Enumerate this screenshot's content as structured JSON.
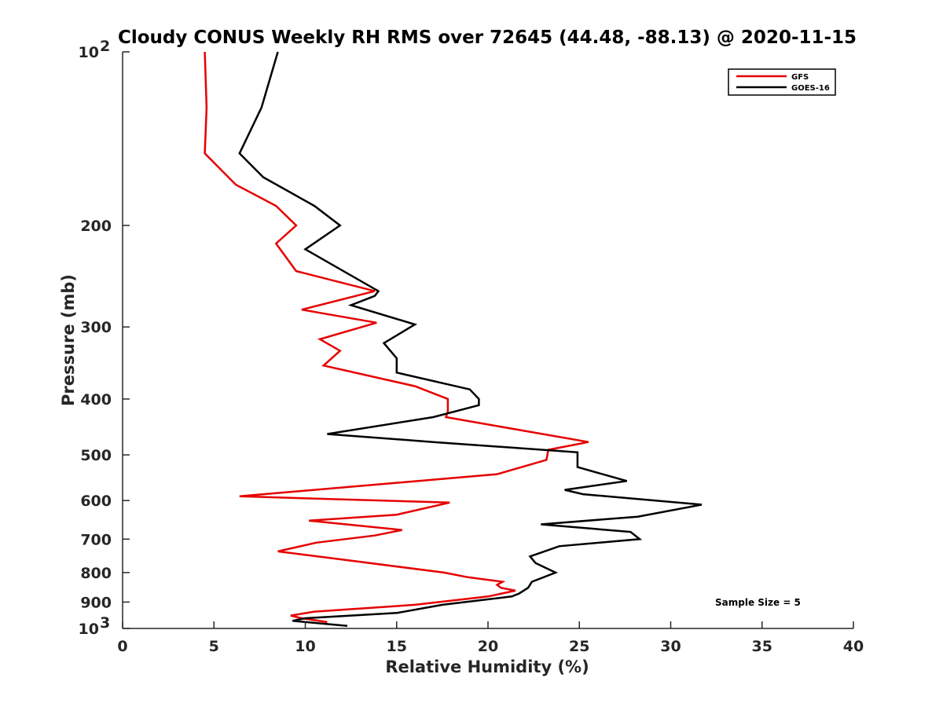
{
  "chart_data": {
    "type": "line",
    "title": "Cloudy CONUS Weekly RH RMS over 72645 (44.48, -88.13) @ 2020-11-15",
    "xlabel": "Relative Humidity (%)",
    "ylabel": "Pressure (mb)",
    "xlim": [
      0,
      40
    ],
    "ylim": [
      100,
      1000
    ],
    "y_scale": "log",
    "y_reversed": true,
    "grid": false,
    "legend_position": "top-right",
    "x_ticks": [
      0,
      5,
      10,
      15,
      20,
      25,
      30,
      35,
      40
    ],
    "x_tick_labels": [
      "0",
      "5",
      "10",
      "15",
      "20",
      "25",
      "30",
      "35",
      "40"
    ],
    "y_ticks": [
      200,
      300,
      400,
      500,
      600,
      700,
      800,
      900
    ],
    "y_tick_labels": [
      "200",
      "300",
      "400",
      "500",
      "600",
      "700",
      "800",
      "900"
    ],
    "y_decade_labels": [
      {
        "value": 100,
        "base": "10",
        "exp": "2"
      },
      {
        "value": 1000,
        "base": "10",
        "exp": "3"
      }
    ],
    "annotation": "Sample Size = 5",
    "series": [
      {
        "name": "GFS",
        "color": "#e60000",
        "points": [
          [
            4.5,
            100
          ],
          [
            4.6,
            125
          ],
          [
            4.5,
            150
          ],
          [
            6.2,
            170
          ],
          [
            8.4,
            185
          ],
          [
            9.5,
            200
          ],
          [
            8.4,
            215
          ],
          [
            9.5,
            240
          ],
          [
            13.8,
            260
          ],
          [
            9.8,
            280
          ],
          [
            13.9,
            295
          ],
          [
            10.8,
            315
          ],
          [
            11.9,
            330
          ],
          [
            11.0,
            350
          ],
          [
            16.0,
            380
          ],
          [
            17.8,
            400
          ],
          [
            17.8,
            420
          ],
          [
            17.7,
            430
          ],
          [
            25.5,
            475
          ],
          [
            23.3,
            490
          ],
          [
            23.2,
            510
          ],
          [
            20.5,
            540
          ],
          [
            6.4,
            590
          ],
          [
            17.9,
            605
          ],
          [
            15.0,
            635
          ],
          [
            10.2,
            650
          ],
          [
            15.3,
            675
          ],
          [
            13.8,
            690
          ],
          [
            10.6,
            710
          ],
          [
            8.5,
            735
          ],
          [
            12.1,
            760
          ],
          [
            17.6,
            800
          ],
          [
            18.9,
            815
          ],
          [
            20.8,
            830
          ],
          [
            20.5,
            840
          ],
          [
            20.7,
            850
          ],
          [
            21.5,
            860
          ],
          [
            20.0,
            880
          ],
          [
            16.0,
            910
          ],
          [
            10.5,
            935
          ],
          [
            9.2,
            950
          ],
          [
            9.8,
            960
          ],
          [
            11.2,
            975
          ]
        ]
      },
      {
        "name": "GOES-16",
        "color": "#000000",
        "points": [
          [
            8.5,
            100
          ],
          [
            7.6,
            125
          ],
          [
            6.4,
            150
          ],
          [
            7.7,
            165
          ],
          [
            10.5,
            185
          ],
          [
            11.9,
            200
          ],
          [
            10.0,
            220
          ],
          [
            14.0,
            260
          ],
          [
            13.8,
            265
          ],
          [
            12.5,
            275
          ],
          [
            16.0,
            297
          ],
          [
            14.3,
            320
          ],
          [
            15.0,
            340
          ],
          [
            15.0,
            360
          ],
          [
            19.0,
            385
          ],
          [
            19.5,
            400
          ],
          [
            19.5,
            410
          ],
          [
            17.0,
            430
          ],
          [
            11.2,
            460
          ],
          [
            17.0,
            475
          ],
          [
            24.9,
            495
          ],
          [
            24.9,
            525
          ],
          [
            27.6,
            555
          ],
          [
            24.2,
            575
          ],
          [
            25.2,
            585
          ],
          [
            31.7,
            610
          ],
          [
            28.2,
            640
          ],
          [
            22.9,
            660
          ],
          [
            27.8,
            680
          ],
          [
            28.3,
            700
          ],
          [
            23.9,
            720
          ],
          [
            22.3,
            750
          ],
          [
            22.6,
            770
          ],
          [
            23.7,
            800
          ],
          [
            22.4,
            830
          ],
          [
            22.2,
            850
          ],
          [
            21.7,
            870
          ],
          [
            21.3,
            880
          ],
          [
            17.5,
            910
          ],
          [
            15.0,
            940
          ],
          [
            10.0,
            960
          ],
          [
            9.3,
            970
          ],
          [
            12.3,
            990
          ]
        ]
      }
    ]
  }
}
